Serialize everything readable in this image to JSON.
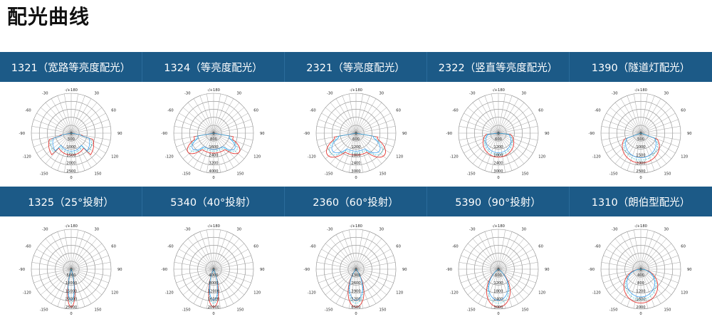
{
  "page": {
    "title": "配光曲线"
  },
  "panels": [
    {
      "label": "1321（宽路等亮度配光）",
      "top_axis": "-/+180",
      "angles": [
        "150",
        "150",
        "120",
        "120",
        "90",
        "90",
        "60",
        "60",
        "30",
        "30"
      ],
      "center": "0",
      "bottom": "0",
      "radii": [
        "500",
        "1000",
        "1500",
        "2000",
        "2500"
      ],
      "shape": "wide",
      "colors": [
        "#e53935",
        "#2196f3",
        "#26c6da"
      ]
    },
    {
      "label": "1324（等亮度配光）",
      "top_axis": "-/+180",
      "angles": [
        "150",
        "150",
        "120",
        "120",
        "90",
        "90",
        "60",
        "60",
        "30",
        "30"
      ],
      "center": "0",
      "bottom": "0",
      "radii": [
        "800",
        "1600",
        "2400",
        "3200",
        "4000"
      ],
      "shape": "wide2",
      "colors": [
        "#e53935",
        "#2196f3",
        "#26c6da"
      ]
    },
    {
      "label": "2321（等亮度配光）",
      "top_axis": "-/+180",
      "angles": [
        "150",
        "150",
        "120",
        "120",
        "90",
        "90",
        "60",
        "60",
        "30",
        "30"
      ],
      "center": "0",
      "bottom": "0",
      "radii": [
        "600",
        "1200",
        "1800",
        "2400",
        "3000"
      ],
      "shape": "wide3",
      "colors": [
        "#e53935",
        "#2196f3",
        "#26c6da"
      ]
    },
    {
      "label": "2322（竖直等亮度配光）",
      "top_axis": "-/+180",
      "angles": [
        "150",
        "150",
        "120",
        "120",
        "90",
        "90",
        "60",
        "60",
        "30",
        "30"
      ],
      "center": "0",
      "bottom": "0",
      "radii": [
        "600",
        "1200",
        "1800",
        "2400",
        "3000"
      ],
      "shape": "side",
      "colors": [
        "#e53935",
        "#2196f3",
        "#26c6da"
      ]
    },
    {
      "label": "1390（隧道灯配光）",
      "top_axis": "-/+180",
      "angles": [
        "150",
        "150",
        "120",
        "120",
        "90",
        "90",
        "60",
        "60",
        "30",
        "30"
      ],
      "center": "0",
      "bottom": "0",
      "radii": [
        "500",
        "1000",
        "1500",
        "2000",
        "2500"
      ],
      "shape": "tunnel",
      "colors": [
        "#e53935",
        "#2196f3",
        "#26c6da"
      ]
    },
    {
      "label": "1325（25°投射）",
      "top_axis": "-/+180",
      "angles": [
        "150",
        "150",
        "120",
        "120",
        "90",
        "90",
        "60",
        "60",
        "30",
        "30"
      ],
      "center": "0",
      "bottom": "0",
      "radii": [
        "5000",
        "10000",
        "15000",
        "20000",
        "25000"
      ],
      "shape": "narrow",
      "colors": [
        "#e53935",
        "#2196f3",
        "#26c6da"
      ]
    },
    {
      "label": "5340（40°投射）",
      "top_axis": "-/+180",
      "angles": [
        "150",
        "150",
        "120",
        "120",
        "90",
        "90",
        "60",
        "60",
        "30",
        "30"
      ],
      "center": "0",
      "bottom": "0",
      "radii": [
        "4000",
        "8000",
        "12000",
        "16000",
        "20000"
      ],
      "shape": "narrow2",
      "colors": [
        "#e53935",
        "#2196f3",
        "#26c6da"
      ]
    },
    {
      "label": "2360（60°投射）",
      "top_axis": "-/+180",
      "angles": [
        "150",
        "150",
        "120",
        "120",
        "90",
        "90",
        "60",
        "60",
        "30",
        "30"
      ],
      "center": "0",
      "bottom": "0",
      "radii": [
        "1300",
        "2600",
        "3900",
        "5200",
        "6500"
      ],
      "shape": "mid",
      "colors": [
        "#e53935",
        "#2196f3",
        "#26c6da"
      ]
    },
    {
      "label": "5390（90°投射）",
      "top_axis": "-/+180",
      "angles": [
        "150",
        "150",
        "120",
        "120",
        "90",
        "90",
        "60",
        "60",
        "30",
        "30"
      ],
      "center": "0",
      "bottom": "0",
      "radii": [
        "600",
        "1200",
        "1800",
        "2400",
        "3000"
      ],
      "shape": "beam90",
      "colors": [
        "#e53935",
        "#2196f3",
        "#26c6da"
      ]
    },
    {
      "label": "1310（朗伯型配光）",
      "top_axis": "-/+180",
      "angles": [
        "150",
        "150",
        "120",
        "120",
        "90",
        "90",
        "60",
        "60",
        "30",
        "30"
      ],
      "center": "0",
      "bottom": "0",
      "radii": [
        "400",
        "800",
        "1200",
        "1600",
        "2000"
      ],
      "shape": "lambert",
      "colors": [
        "#e53935",
        "#2196f3",
        "#26c6da"
      ]
    }
  ]
}
